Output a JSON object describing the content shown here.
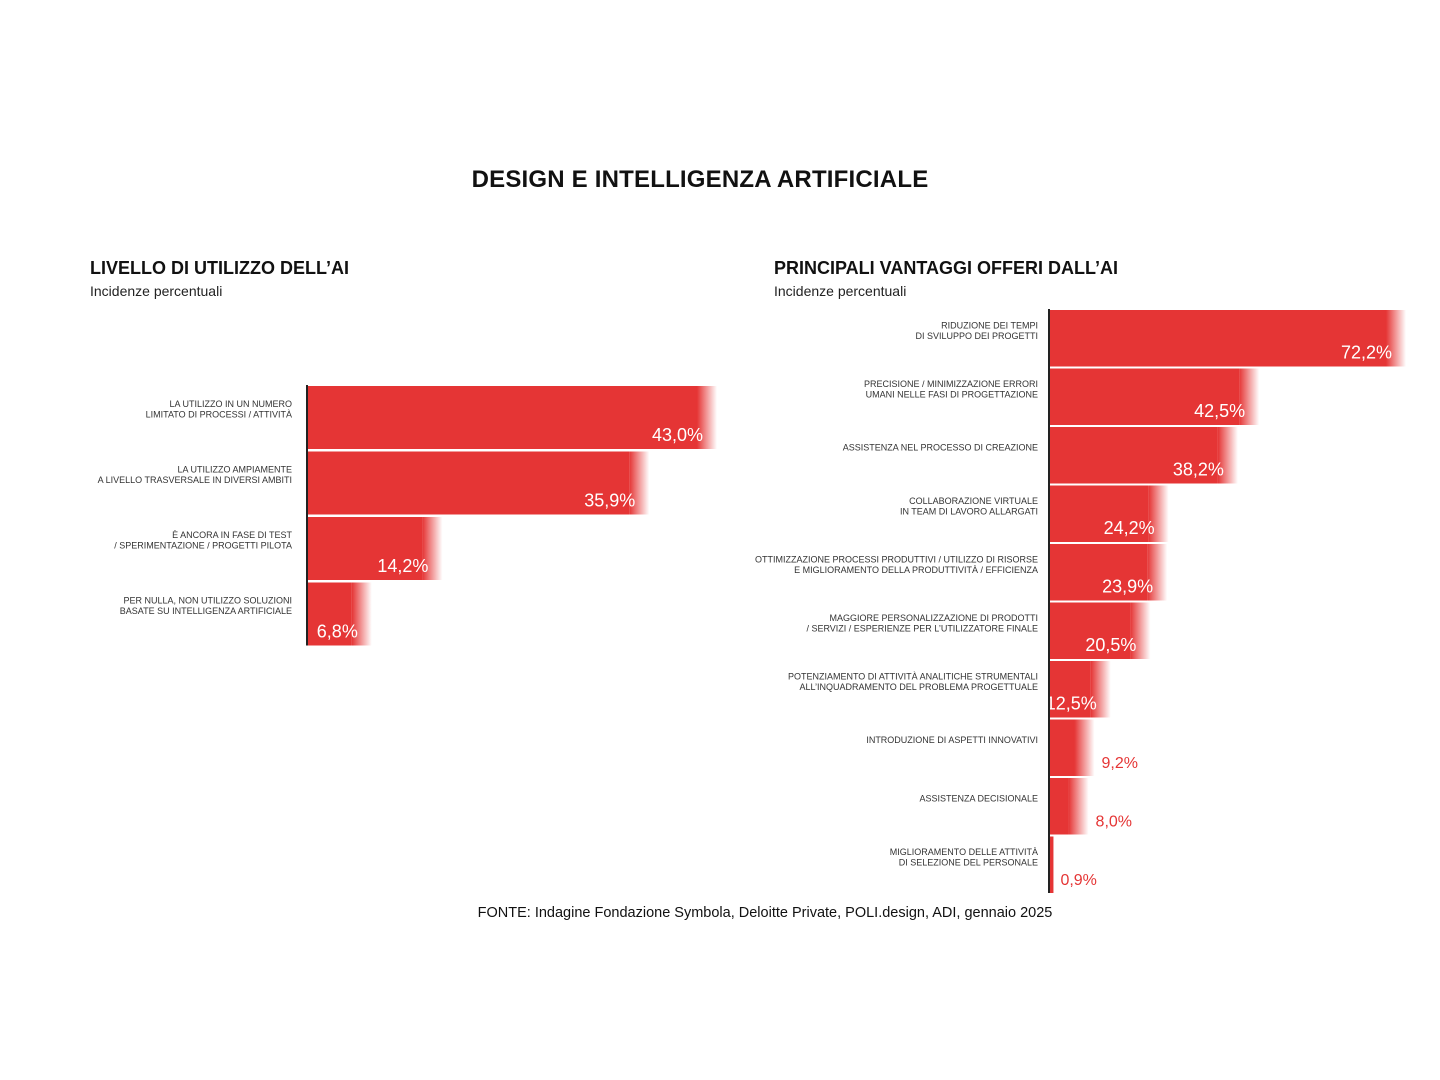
{
  "title": "DESIGN E INTELLIGENZA ARTIFICIALE",
  "source": "FONTE: Indagine Fondazione Symbola, Deloitte Private, POLI.design, ADI, gennaio 2025",
  "colors": {
    "bar": "#e53535",
    "axis": "#222222",
    "value_outside": "#e53535"
  },
  "chart_data": [
    {
      "type": "bar",
      "orientation": "horizontal",
      "title": "LIVELLO DI UTILIZZO DELL’AI",
      "subtitle": "Incidenze percentuali",
      "unit": "%",
      "xlim": [
        0,
        43
      ],
      "categories": [
        [
          "LA UTILIZZO IN UN NUMERO",
          "LIMITATO DI PROCESSI / ATTIVITÀ"
        ],
        [
          "LA UTILIZZO AMPIAMENTE",
          "A LIVELLO TRASVERSALE IN DIVERSI AMBITI"
        ],
        [
          "È ANCORA IN FASE DI TEST",
          "/ SPERIMENTAZIONE / PROGETTI PILOTA"
        ],
        [
          "PER NULLA, NON UTILIZZO SOLUZIONI",
          "BASATE SU INTELLIGENZA ARTIFICIALE"
        ]
      ],
      "values": [
        43.0,
        35.9,
        14.2,
        6.8
      ],
      "value_labels": [
        "43,0%",
        "35,9%",
        "14,2%",
        "6,8%"
      ]
    },
    {
      "type": "bar",
      "orientation": "horizontal",
      "title": "PRINCIPALI VANTAGGI OFFERI DALL’AI",
      "subtitle": "Incidenze percentuali",
      "unit": "%",
      "xlim": [
        0,
        72.2
      ],
      "categories": [
        [
          "RIDUZIONE DEI TEMPI",
          "DI SVILUPPO DEI PROGETTI"
        ],
        [
          "PRECISIONE / MINIMIZZAZIONE ERRORI",
          "UMANI NELLE FASI DI PROGETTAZIONE"
        ],
        [
          "ASSISTENZA NEL PROCESSO DI CREAZIONE"
        ],
        [
          "COLLABORAZIONE VIRTUALE",
          "IN TEAM DI LAVORO ALLARGATI"
        ],
        [
          "OTTIMIZZAZIONE PROCESSI PRODUTTIVI / UTILIZZO DI RISORSE",
          "E MIGLIORAMENTO DELLA PRODUTTIVITÀ / EFFICIENZA"
        ],
        [
          "MAGGIORE PERSONALIZZAZIONE DI PRODOTTI",
          "/ SERVIZI / ESPERIENZE PER L’UTILIZZATORE FINALE"
        ],
        [
          "POTENZIAMENTO DI ATTIVITÀ ANALITICHE STRUMENTALI",
          "ALL’INQUADRAMENTO DEL PROBLEMA PROGETTUALE"
        ],
        [
          "INTRODUZIONE DI ASPETTI INNOVATIVI"
        ],
        [
          "ASSISTENZA DECISIONALE"
        ],
        [
          "MIGLIORAMENTO DELLE ATTIVITÀ",
          "DI SELEZIONE DEL PERSONALE"
        ]
      ],
      "values": [
        72.2,
        42.5,
        38.2,
        24.2,
        23.9,
        20.5,
        12.5,
        9.2,
        8.0,
        0.9
      ],
      "value_labels": [
        "72,2%",
        "42,5%",
        "38,2%",
        "24,2%",
        "23,9%",
        "20,5%",
        "12,5%",
        "9,2%",
        "8,0%",
        "0,9%"
      ]
    }
  ]
}
